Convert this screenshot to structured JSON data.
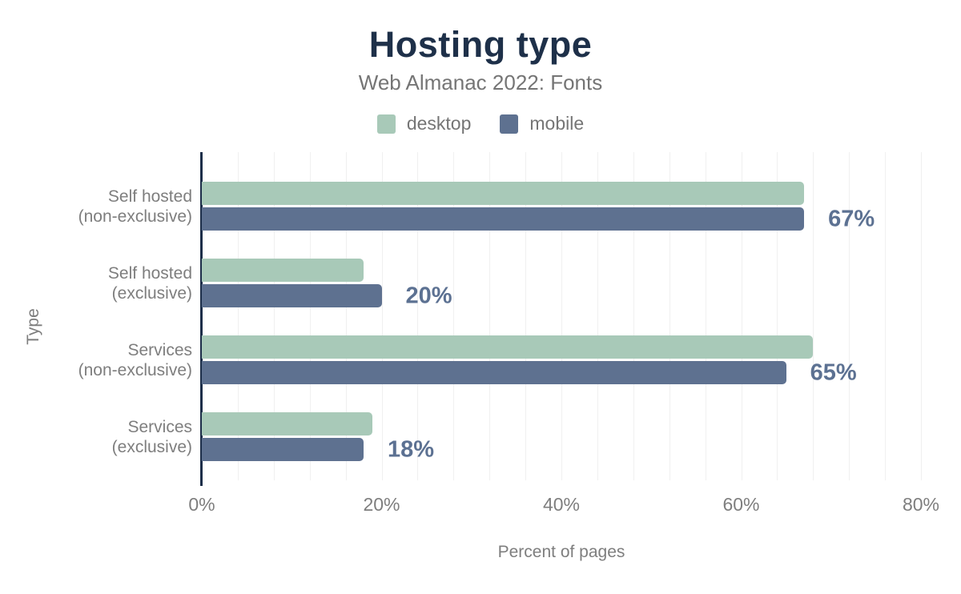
{
  "header": {
    "title": "Hosting type",
    "subtitle": "Web Almanac 2022: Fonts"
  },
  "legend": [
    {
      "label": "desktop",
      "color": "#a8c9b8"
    },
    {
      "label": "mobile",
      "color": "#5e7190"
    }
  ],
  "chart_data": {
    "type": "bar",
    "orientation": "horizontal",
    "title": "Hosting type",
    "subtitle": "Web Almanac 2022: Fonts",
    "categories": [
      "Self hosted (non-exclusive)",
      "Self hosted (exclusive)",
      "Services (non-exclusive)",
      "Services (exclusive)"
    ],
    "category_lines": [
      [
        "Self hosted",
        "(non-exclusive)"
      ],
      [
        "Self hosted",
        "(exclusive)"
      ],
      [
        "Services",
        "(non-exclusive)"
      ],
      [
        "Services",
        "(exclusive)"
      ]
    ],
    "series": [
      {
        "name": "desktop",
        "color": "#a8c9b8",
        "values": [
          67,
          18,
          68,
          19
        ]
      },
      {
        "name": "mobile",
        "color": "#5e7190",
        "values": [
          67,
          20,
          65,
          18
        ]
      }
    ],
    "value_labels": [
      "67%",
      "20%",
      "65%",
      "18%"
    ],
    "value_label_series": "mobile",
    "xlabel": "Percent of pages",
    "ylabel": "Type",
    "x_ticks": [
      "0%",
      "20%",
      "40%",
      "60%",
      "80%"
    ],
    "x_tick_values": [
      0,
      20,
      40,
      60,
      80
    ],
    "xlim": [
      0,
      80
    ],
    "minor_grid_step": 4,
    "grid": true,
    "legend_position": "top"
  },
  "colors": {
    "title": "#1e3049",
    "axis_line": "#1c2e49",
    "value_label": "#5c7192",
    "grid": "#f0f0f0",
    "text_gray": "#7e7e7e",
    "subtitle_gray": "#757575"
  }
}
